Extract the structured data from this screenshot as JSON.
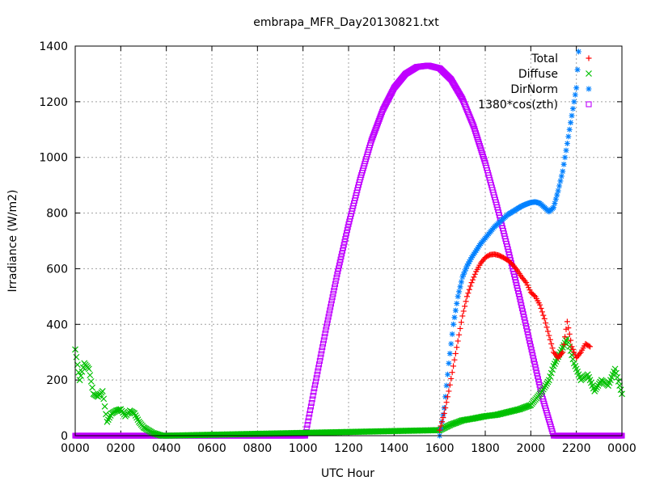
{
  "chart_data": {
    "type": "scatter",
    "title": "embrapa_MFR_Day20130821.txt",
    "xlabel": "UTC Hour",
    "ylabel": "Irradiance (W/m2)",
    "xlim": [
      0,
      24
    ],
    "ylim": [
      0,
      1400
    ],
    "grid": true,
    "legend_position": "top-right",
    "x_tick_labels": [
      "0000",
      "0200",
      "0400",
      "0600",
      "0800",
      "1000",
      "1200",
      "1400",
      "1600",
      "1800",
      "2000",
      "2200",
      "0000"
    ],
    "y_ticks": [
      0,
      200,
      400,
      600,
      800,
      1000,
      1200,
      1400
    ],
    "colors": {
      "total": "#ff0000",
      "diffuse": "#00c000",
      "dirnorm": "#0080ff",
      "cos": "#c000ff"
    },
    "series": [
      {
        "name": "Total",
        "marker": "plus",
        "color": "#ff0000",
        "x": [
          16.0,
          16.2,
          16.4,
          16.6,
          16.8,
          17.0,
          17.2,
          17.4,
          17.6,
          17.8,
          18.0,
          18.2,
          18.4,
          18.6,
          18.8,
          19.0,
          19.2,
          19.4,
          19.6,
          19.8,
          20.0,
          20.2,
          20.4,
          20.6,
          20.8,
          21.0,
          21.2,
          21.4,
          21.6,
          21.8,
          22.0,
          22.2,
          22.4,
          22.6
        ],
        "y": [
          20,
          80,
          160,
          250,
          340,
          430,
          500,
          550,
          590,
          620,
          640,
          650,
          652,
          648,
          640,
          630,
          615,
          595,
          570,
          550,
          515,
          500,
          470,
          420,
          360,
          300,
          280,
          300,
          410,
          320,
          280,
          300,
          330,
          320
        ]
      },
      {
        "name": "Diffuse",
        "marker": "cross",
        "color": "#00c000",
        "x": [
          0.0,
          0.2,
          0.4,
          0.6,
          0.8,
          1.0,
          1.2,
          1.4,
          1.6,
          1.8,
          2.0,
          2.2,
          2.4,
          2.6,
          2.8,
          3.0,
          3.2,
          3.4,
          3.6,
          3.8,
          4.0,
          16.0,
          16.5,
          17.0,
          17.5,
          18.0,
          18.5,
          19.0,
          19.5,
          20.0,
          20.2,
          20.5,
          20.8,
          21.0,
          21.3,
          21.6,
          21.9,
          22.2,
          22.5,
          22.8,
          23.1,
          23.4,
          23.7,
          24.0
        ],
        "y": [
          310,
          200,
          260,
          240,
          150,
          140,
          160,
          50,
          80,
          90,
          95,
          70,
          90,
          80,
          50,
          30,
          20,
          10,
          5,
          0,
          0,
          20,
          40,
          55,
          62,
          70,
          75,
          85,
          95,
          110,
          130,
          160,
          200,
          250,
          300,
          350,
          260,
          200,
          220,
          160,
          200,
          180,
          240,
          150
        ]
      },
      {
        "name": "DirNorm",
        "marker": "star",
        "color": "#0080ff",
        "x": [
          16.0,
          16.2,
          16.4,
          16.6,
          16.8,
          17.0,
          17.2,
          17.4,
          17.6,
          17.8,
          18.0,
          18.2,
          18.4,
          18.6,
          18.8,
          19.0,
          19.2,
          19.4,
          19.6,
          19.8,
          20.0,
          20.2,
          20.4,
          20.6,
          20.8,
          21.0,
          21.2,
          21.4,
          21.6,
          21.8,
          22.0,
          22.1
        ],
        "y": [
          0,
          100,
          260,
          400,
          500,
          570,
          610,
          640,
          665,
          690,
          710,
          730,
          750,
          765,
          780,
          795,
          805,
          815,
          825,
          832,
          838,
          840,
          835,
          820,
          805,
          820,
          880,
          950,
          1050,
          1150,
          1250,
          1380
        ]
      },
      {
        "name": "1380*cos(zth)",
        "marker": "square",
        "color": "#c000ff",
        "x": [
          0.0,
          1.0,
          2.0,
          3.0,
          4.0,
          5.0,
          6.0,
          7.0,
          8.0,
          9.0,
          10.0,
          10.1,
          10.5,
          11.0,
          11.5,
          12.0,
          12.5,
          13.0,
          13.5,
          14.0,
          14.5,
          15.0,
          15.5,
          16.0,
          16.5,
          17.0,
          17.5,
          18.0,
          18.5,
          19.0,
          19.5,
          20.0,
          20.5,
          21.0,
          21.5,
          22.0,
          22.2,
          23.0,
          24.0
        ],
        "y": [
          0,
          0,
          0,
          0,
          0,
          0,
          0,
          0,
          0,
          0,
          0,
          0,
          170,
          380,
          580,
          760,
          920,
          1060,
          1170,
          1250,
          1300,
          1325,
          1330,
          1320,
          1280,
          1210,
          1110,
          980,
          830,
          670,
          500,
          320,
          140,
          0,
          0,
          0,
          0,
          0,
          0
        ]
      }
    ]
  }
}
